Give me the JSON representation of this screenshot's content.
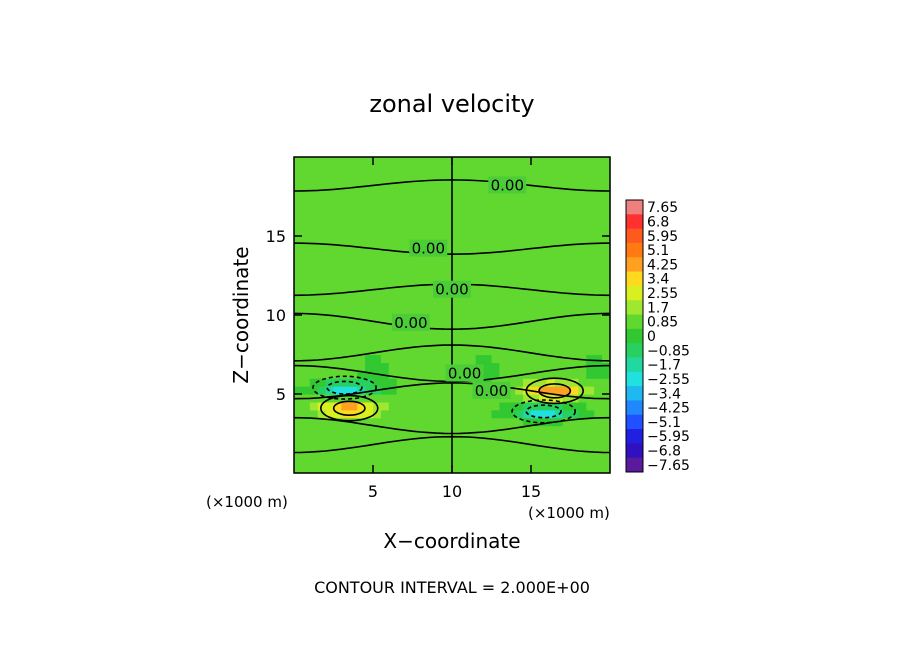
{
  "chart_data": {
    "type": "heatmap",
    "title": "zonal velocity",
    "xlabel": "X−coordinate",
    "ylabel": "Z−coordinate",
    "x_unit_label": "(×1000 m)",
    "y_unit_label": "(×1000 m)",
    "xlim": [
      0,
      20
    ],
    "ylim": [
      0,
      20
    ],
    "x_ticks": [
      5,
      10,
      15
    ],
    "y_ticks": [
      5,
      10,
      15
    ],
    "x_tick_labels": [
      "5",
      "10",
      "15"
    ],
    "y_tick_labels": [
      "5",
      "10",
      "15"
    ],
    "footer": "CONTOUR INTERVAL = 2.000E+00",
    "contour_labels": [
      {
        "x": 13.5,
        "z": 18.2,
        "text": "0.00"
      },
      {
        "x": 8.5,
        "z": 14.2,
        "text": "0.00"
      },
      {
        "x": 10.0,
        "z": 11.6,
        "text": "0.00"
      },
      {
        "x": 7.4,
        "z": 9.5,
        "text": "0.00"
      },
      {
        "x": 10.8,
        "z": 6.3,
        "text": "0.00"
      },
      {
        "x": 12.5,
        "z": 5.2,
        "text": "0.00"
      }
    ],
    "colorbar": {
      "levels": [
        "7.65",
        "6.8",
        "5.95",
        "5.1",
        "4.25",
        "3.4",
        "2.55",
        "1.7",
        "0.85",
        "0",
        "−0.85",
        "−1.7",
        "−2.55",
        "−3.4",
        "−4.25",
        "−5.1",
        "−5.95",
        "−6.8",
        "−7.65"
      ],
      "colors": [
        "#f08080",
        "#ff3030",
        "#ff5a1e",
        "#ff7a10",
        "#ffa020",
        "#ffd820",
        "#d8f020",
        "#a0e830",
        "#60d830",
        "#32c832",
        "#28d060",
        "#20d8a0",
        "#20e0e0",
        "#20b8f0",
        "#2088ff",
        "#2050ff",
        "#2020e0",
        "#3010c0",
        "#5a1a9e"
      ]
    },
    "background_value": 0.3,
    "features": [
      {
        "x": 3.5,
        "z": 4.1,
        "value": 3.8,
        "sx": 1.8,
        "sz": 0.5,
        "label": "positive lobe lower-left"
      },
      {
        "x": 16.5,
        "z": 5.2,
        "value": 3.8,
        "sx": 1.8,
        "sz": 0.5,
        "label": "positive lobe upper-right"
      },
      {
        "x": 3.2,
        "z": 5.4,
        "value": -3.6,
        "sx": 2.0,
        "sz": 0.45,
        "label": "negative lobe upper-left"
      },
      {
        "x": 15.8,
        "z": 3.9,
        "value": -3.6,
        "sx": 2.0,
        "sz": 0.45,
        "label": "negative lobe lower-right"
      }
    ]
  }
}
